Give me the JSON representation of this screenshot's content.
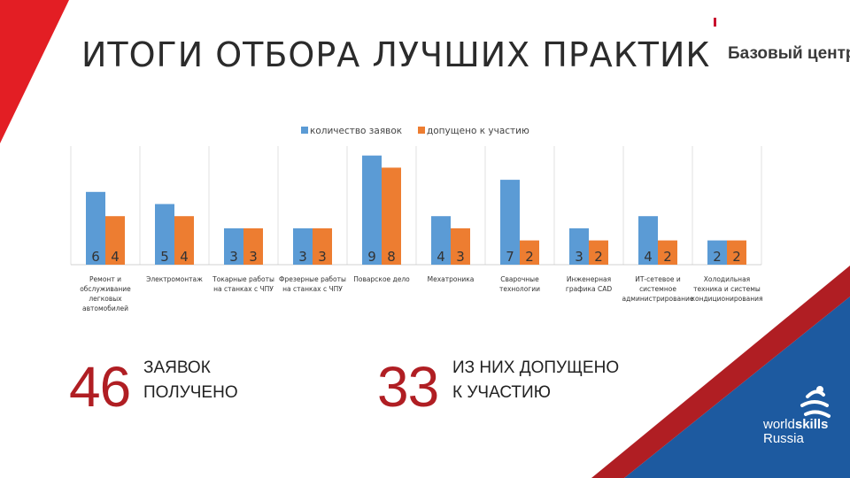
{
  "slide": {
    "title": "ИТОГИ ОТБОРА ЛУЧШИХ ПРАКТИК",
    "logo": "Базовый центр",
    "brand_colors": {
      "red": "#e31e24",
      "blue": "#1d5aa0",
      "dark_red": "#b01e23"
    }
  },
  "stats": [
    {
      "value": "46",
      "text_line1": "ЗАЯВОК",
      "text_line2": "ПОЛУЧЕНО"
    },
    {
      "value": "33",
      "text_line1": "ИЗ НИХ ДОПУЩЕНО",
      "text_line2": "К УЧАСТИЮ"
    }
  ],
  "worldskills": {
    "word1": "world",
    "word2": "skills",
    "word3": "Russia"
  },
  "chart_data": {
    "type": "bar",
    "title": "",
    "xlabel": "",
    "ylabel": "",
    "legend_position": "top",
    "grid": false,
    "categories": [
      "Ремонт и обслуживание легковых автомобилей",
      "Электромонтаж",
      "Токарные работы на станках с ЧПУ",
      "Фрезерные работы на станках с ЧПУ",
      "Поварское дело",
      "Мехатроника",
      "Сварочные технологии",
      "Инженерная графика CAD",
      "ИТ-сетевое и системное администрирование",
      "Холодильная техника и системы кондиционирования"
    ],
    "series": [
      {
        "name": "количество заявок",
        "color": "#5b9bd5",
        "values": [
          6,
          5,
          3,
          3,
          9,
          4,
          7,
          3,
          4,
          2
        ]
      },
      {
        "name": "допущено к участию",
        "color": "#ed7d31",
        "values": [
          4,
          4,
          3,
          3,
          8,
          3,
          2,
          2,
          2,
          2
        ]
      }
    ],
    "ylim": [
      0,
      10
    ]
  }
}
